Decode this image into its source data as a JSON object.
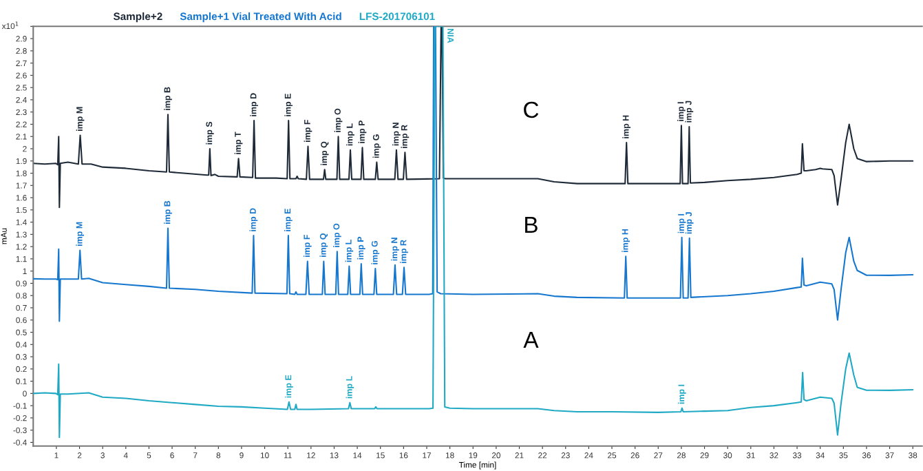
{
  "chart_data": {
    "type": "line",
    "xlabel": "Time [min]",
    "ylabel": "mAu",
    "xlim": [
      0,
      38.4
    ],
    "xticks": [
      1,
      2,
      3,
      4,
      5,
      6,
      7,
      8,
      9,
      10,
      11,
      12,
      13,
      14,
      15,
      16,
      17,
      18,
      19,
      20,
      21,
      22,
      23,
      24,
      25,
      26,
      27,
      28,
      29,
      30,
      31,
      32,
      33,
      34,
      35,
      36,
      37,
      38
    ],
    "ylim": [
      -0.43,
      3.0
    ],
    "yticks": [
      -0.4,
      -0.3,
      -0.2,
      -0.1,
      0,
      0.1,
      0.2,
      0.3,
      0.4,
      0.5,
      0.6,
      0.7,
      0.8,
      0.9,
      1,
      1.1,
      1.2,
      1.3,
      1.4,
      1.5,
      1.6,
      1.7,
      1.8,
      1.9,
      2,
      2.1,
      2.2,
      2.3,
      2.4,
      2.5,
      2.6,
      2.7,
      2.8,
      2.9,
      {
        "value": 3,
        "label": null
      }
    ],
    "grid": false,
    "legend": "top left",
    "marker": "none",
    "line_style": "solid",
    "series": [
      {
        "name": "Sample+2",
        "color": "#1f2a38",
        "x": [
          0,
          0.5,
          0.98,
          1.06,
          1.1,
          1.13,
          1.17,
          1.3,
          1.5,
          1.95,
          2.03,
          2.11,
          2.5,
          3,
          4,
          5,
          5.76,
          5.82,
          5.88,
          6.5,
          7.5,
          7.58,
          7.63,
          7.68,
          7.85,
          8.0,
          8.81,
          8.87,
          8.93,
          9.48,
          9.54,
          9.6,
          10.5,
          10.97,
          11.03,
          11.09,
          11.35,
          11.4,
          11.45,
          11.8,
          11.87,
          11.94,
          12.54,
          12.59,
          12.64,
          13.12,
          13.18,
          13.24,
          13.64,
          13.7,
          13.76,
          14.16,
          14.22,
          14.28,
          14.78,
          14.84,
          14.9,
          15.62,
          15.69,
          15.76,
          15.99,
          16.06,
          16.13,
          17.0,
          17.55,
          17.62,
          17.66,
          17.72,
          17.8,
          19,
          21.8,
          22.5,
          23.5,
          25,
          25.57,
          25.63,
          25.69,
          27,
          27.95,
          28.0,
          28.05,
          28.29,
          28.34,
          28.39,
          29,
          30,
          31,
          32,
          33.0,
          33.18,
          33.23,
          33.3,
          33.4,
          33.8,
          34.0,
          34.1,
          34.5,
          34.6,
          34.75,
          34.9,
          35.1,
          35.25,
          35.45,
          35.6,
          36,
          37,
          38
        ],
        "values": [
          1.88,
          1.875,
          1.88,
          1.87,
          2.1,
          1.52,
          1.88,
          1.885,
          1.89,
          1.875,
          2.11,
          1.875,
          1.875,
          1.85,
          1.84,
          1.82,
          1.81,
          2.28,
          1.81,
          1.8,
          1.785,
          1.785,
          2.0,
          1.78,
          1.79,
          1.775,
          1.77,
          1.92,
          1.77,
          1.765,
          2.23,
          1.76,
          1.76,
          1.755,
          2.23,
          1.755,
          1.755,
          1.775,
          1.755,
          1.75,
          2.02,
          1.75,
          1.75,
          1.83,
          1.75,
          1.75,
          2.1,
          1.75,
          1.75,
          1.99,
          1.75,
          1.75,
          2.01,
          1.75,
          1.75,
          1.89,
          1.75,
          1.75,
          1.99,
          1.75,
          1.75,
          1.97,
          1.75,
          1.753,
          1.755,
          3.0,
          3.0,
          1.76,
          1.755,
          1.755,
          1.755,
          1.73,
          1.715,
          1.715,
          1.715,
          2.05,
          1.715,
          1.715,
          1.715,
          2.19,
          1.715,
          1.715,
          2.18,
          1.72,
          1.725,
          1.74,
          1.75,
          1.765,
          1.79,
          1.8,
          2.04,
          1.82,
          1.82,
          1.83,
          1.84,
          1.835,
          1.83,
          1.78,
          1.54,
          1.75,
          2.05,
          2.2,
          2.0,
          1.92,
          1.895,
          1.9,
          1.9
        ]
      },
      {
        "name": "Sample+1 Vial Treated With Acid",
        "color": "#1677cf",
        "x": [
          0,
          0.5,
          0.98,
          1.06,
          1.1,
          1.13,
          1.17,
          1.5,
          1.95,
          2.02,
          2.09,
          2.4,
          3,
          4,
          5,
          5.76,
          5.82,
          5.88,
          7,
          8,
          9.46,
          9.52,
          9.58,
          10.96,
          11.02,
          11.08,
          11.3,
          11.35,
          11.4,
          11.78,
          11.85,
          11.92,
          12.49,
          12.55,
          12.61,
          13.07,
          13.13,
          13.19,
          13.59,
          13.65,
          13.71,
          14.11,
          14.17,
          14.23,
          14.72,
          14.78,
          14.84,
          15.56,
          15.63,
          15.7,
          15.95,
          16.02,
          16.09,
          17.1,
          17.26,
          17.3,
          17.38,
          17.45,
          17.6,
          19,
          21.8,
          22.5,
          23.5,
          25.54,
          25.6,
          25.66,
          27,
          27.96,
          28.02,
          28.08,
          28.29,
          28.35,
          28.41,
          30,
          31,
          32,
          33.0,
          33.18,
          33.23,
          33.3,
          33.4,
          34.0,
          34.5,
          34.6,
          34.75,
          34.9,
          35.1,
          35.25,
          35.45,
          35.6,
          36,
          37,
          38
        ],
        "values": [
          0.937,
          0.935,
          0.935,
          0.93,
          1.18,
          0.59,
          0.935,
          0.935,
          0.935,
          1.17,
          0.935,
          0.94,
          0.905,
          0.89,
          0.875,
          0.86,
          1.35,
          0.86,
          0.85,
          0.835,
          0.82,
          1.29,
          0.82,
          0.815,
          1.29,
          0.815,
          0.81,
          0.83,
          0.81,
          0.81,
          1.08,
          0.81,
          0.81,
          1.08,
          0.81,
          0.81,
          1.16,
          0.81,
          0.81,
          1.04,
          0.81,
          0.81,
          1.06,
          0.81,
          0.81,
          1.02,
          0.81,
          0.81,
          1.05,
          0.81,
          0.81,
          1.03,
          0.81,
          0.81,
          0.815,
          3.0,
          3.0,
          0.83,
          0.815,
          0.81,
          0.815,
          0.795,
          0.785,
          0.78,
          1.12,
          0.78,
          0.78,
          0.78,
          1.275,
          0.78,
          0.78,
          1.27,
          0.785,
          0.8,
          0.815,
          0.835,
          0.865,
          0.87,
          1.105,
          0.885,
          0.88,
          0.91,
          0.895,
          0.85,
          0.6,
          0.85,
          1.15,
          1.275,
          1.08,
          1.005,
          0.966,
          0.965,
          0.97
        ]
      },
      {
        "name": "LFS-201706101",
        "color": "#1fa9c4",
        "x": [
          0,
          0.5,
          0.98,
          1.06,
          1.1,
          1.13,
          1.17,
          1.5,
          2.4,
          3,
          4,
          5,
          6,
          7,
          8,
          9,
          10,
          10.98,
          11.05,
          11.12,
          11.3,
          11.35,
          11.4,
          12,
          13.62,
          13.68,
          13.74,
          14.75,
          14.8,
          14.85,
          17.1,
          17.27,
          17.35,
          17.7,
          17.78,
          18.0,
          19,
          21.8,
          22.5,
          23.5,
          25,
          27,
          27.98,
          28.03,
          28.08,
          29,
          30,
          31,
          32,
          33.0,
          33.18,
          33.24,
          33.3,
          33.4,
          34.0,
          34.5,
          34.6,
          34.75,
          34.9,
          35.1,
          35.25,
          35.45,
          35.6,
          36,
          37,
          38
        ],
        "values": [
          0,
          0.005,
          0,
          -0.01,
          0.24,
          -0.36,
          -0.005,
          -0.005,
          0.005,
          -0.03,
          -0.04,
          -0.06,
          -0.075,
          -0.09,
          -0.105,
          -0.11,
          -0.12,
          -0.13,
          -0.07,
          -0.13,
          -0.13,
          -0.09,
          -0.13,
          -0.13,
          -0.125,
          -0.075,
          -0.125,
          -0.125,
          -0.11,
          -0.125,
          -0.125,
          -0.12,
          3.0,
          3.0,
          -0.11,
          -0.12,
          -0.125,
          -0.125,
          -0.14,
          -0.15,
          -0.15,
          -0.155,
          -0.15,
          -0.12,
          -0.15,
          -0.145,
          -0.14,
          -0.115,
          -0.1,
          -0.075,
          -0.07,
          0.17,
          -0.05,
          -0.06,
          -0.03,
          -0.04,
          -0.08,
          -0.34,
          -0.08,
          0.2,
          0.33,
          0.15,
          0.05,
          0.026,
          0.025,
          0.03
        ]
      }
    ],
    "annotations": [
      "x10$^{1}$",
      {
        "text": "imp M",
        "x": 2.03,
        "y": 2.11
      },
      {
        "text": "imp B",
        "x": 5.82,
        "y": 2.28
      },
      {
        "text": "imp S",
        "x": 7.63,
        "y": 2.0
      },
      {
        "text": "imp T",
        "x": 8.87,
        "y": 1.92
      },
      {
        "text": "imp D",
        "x": 9.54,
        "y": 2.23
      },
      {
        "text": "imp E",
        "x": 11.03,
        "y": 2.23
      },
      {
        "text": "imp F",
        "x": 11.87,
        "y": 2.02
      },
      {
        "text": "imp Q",
        "x": 12.59,
        "y": 1.83
      },
      {
        "text": "imp O",
        "x": 13.18,
        "y": 2.1
      },
      {
        "text": "imp L",
        "x": 13.7,
        "y": 1.99
      },
      {
        "text": "imp P",
        "x": 14.22,
        "y": 2.01
      },
      {
        "text": "imp G",
        "x": 14.84,
        "y": 1.89
      },
      {
        "text": "imp N",
        "x": 15.69,
        "y": 1.99
      },
      {
        "text": "imp R",
        "x": 16.06,
        "y": 1.97
      },
      {
        "text": "imp H",
        "x": 25.63,
        "y": 2.05
      },
      {
        "text": "imp I",
        "x": 28.0,
        "y": 2.19
      },
      {
        "text": "imp J",
        "x": 28.34,
        "y": 2.18
      },
      {
        "text": "NIA",
        "x": 17.66,
        "y": 3.0
      },
      {
        "text": "imp M",
        "x": 2.02,
        "y": 1.17
      },
      {
        "text": "imp B",
        "x": 5.82,
        "y": 1.35
      },
      {
        "text": "imp D",
        "x": 9.52,
        "y": 1.29
      },
      {
        "text": "imp E",
        "x": 11.02,
        "y": 1.29
      },
      {
        "text": "imp F",
        "x": 11.85,
        "y": 1.08
      },
      {
        "text": "imp Q",
        "x": 12.55,
        "y": 1.08
      },
      {
        "text": "imp O",
        "x": 13.13,
        "y": 1.16
      },
      {
        "text": "imp L",
        "x": 13.65,
        "y": 1.04
      },
      {
        "text": "imp P",
        "x": 14.17,
        "y": 1.06
      },
      {
        "text": "imp G",
        "x": 14.78,
        "y": 1.02
      },
      {
        "text": "imp N",
        "x": 15.63,
        "y": 1.05
      },
      {
        "text": "imp R",
        "x": 16.02,
        "y": 1.03
      },
      {
        "text": "imp H",
        "x": 25.6,
        "y": 1.12
      },
      {
        "text": "imp I",
        "x": 28.02,
        "y": 1.275
      },
      {
        "text": "imp J",
        "x": 28.35,
        "y": 1.27
      },
      {
        "text": "imp E",
        "x": 11.05,
        "y": -0.07
      },
      {
        "text": "imp L",
        "x": 13.68,
        "y": -0.075
      },
      {
        "text": "imp I",
        "x": 28.03,
        "y": -0.12
      },
      "C",
      "B",
      "A"
    ]
  }
}
